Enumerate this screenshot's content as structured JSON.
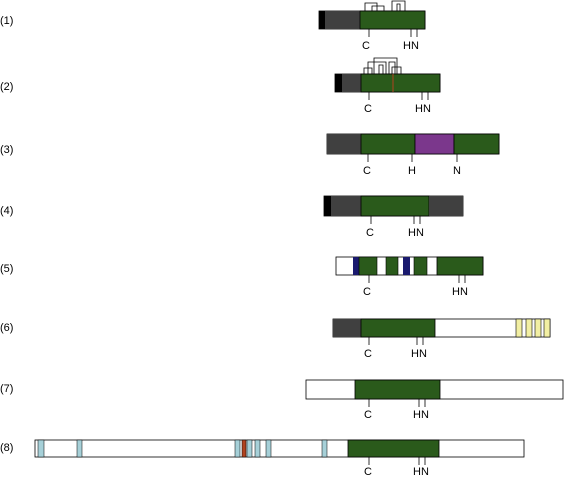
{
  "colors": {
    "catalytic": "#2a5a1b",
    "dark_grey": "#404040",
    "black": "#000000",
    "purple": "#7b378c",
    "navy": "#1a1a6e",
    "light_blue": "#a6d0d8",
    "yellow": "#f2efa3",
    "rust": "#b0421f",
    "outline": "#000000"
  },
  "rows": [
    {
      "label": "(1)",
      "motifs": [
        "C",
        "HN"
      ]
    },
    {
      "label": "(2)",
      "motifs": [
        "C",
        "HN"
      ]
    },
    {
      "label": "(3)",
      "motifs": [
        "C",
        "H",
        "N"
      ]
    },
    {
      "label": "(4)",
      "motifs": [
        "C",
        "HN"
      ]
    },
    {
      "label": "(5)",
      "motifs": [
        "C",
        "HN"
      ]
    },
    {
      "label": "(6)",
      "motifs": [
        "C",
        "HN"
      ]
    },
    {
      "label": "(7)",
      "motifs": [
        "C",
        "HN"
      ]
    },
    {
      "label": "(8)",
      "motifs": [
        "C",
        "HN"
      ]
    }
  ]
}
